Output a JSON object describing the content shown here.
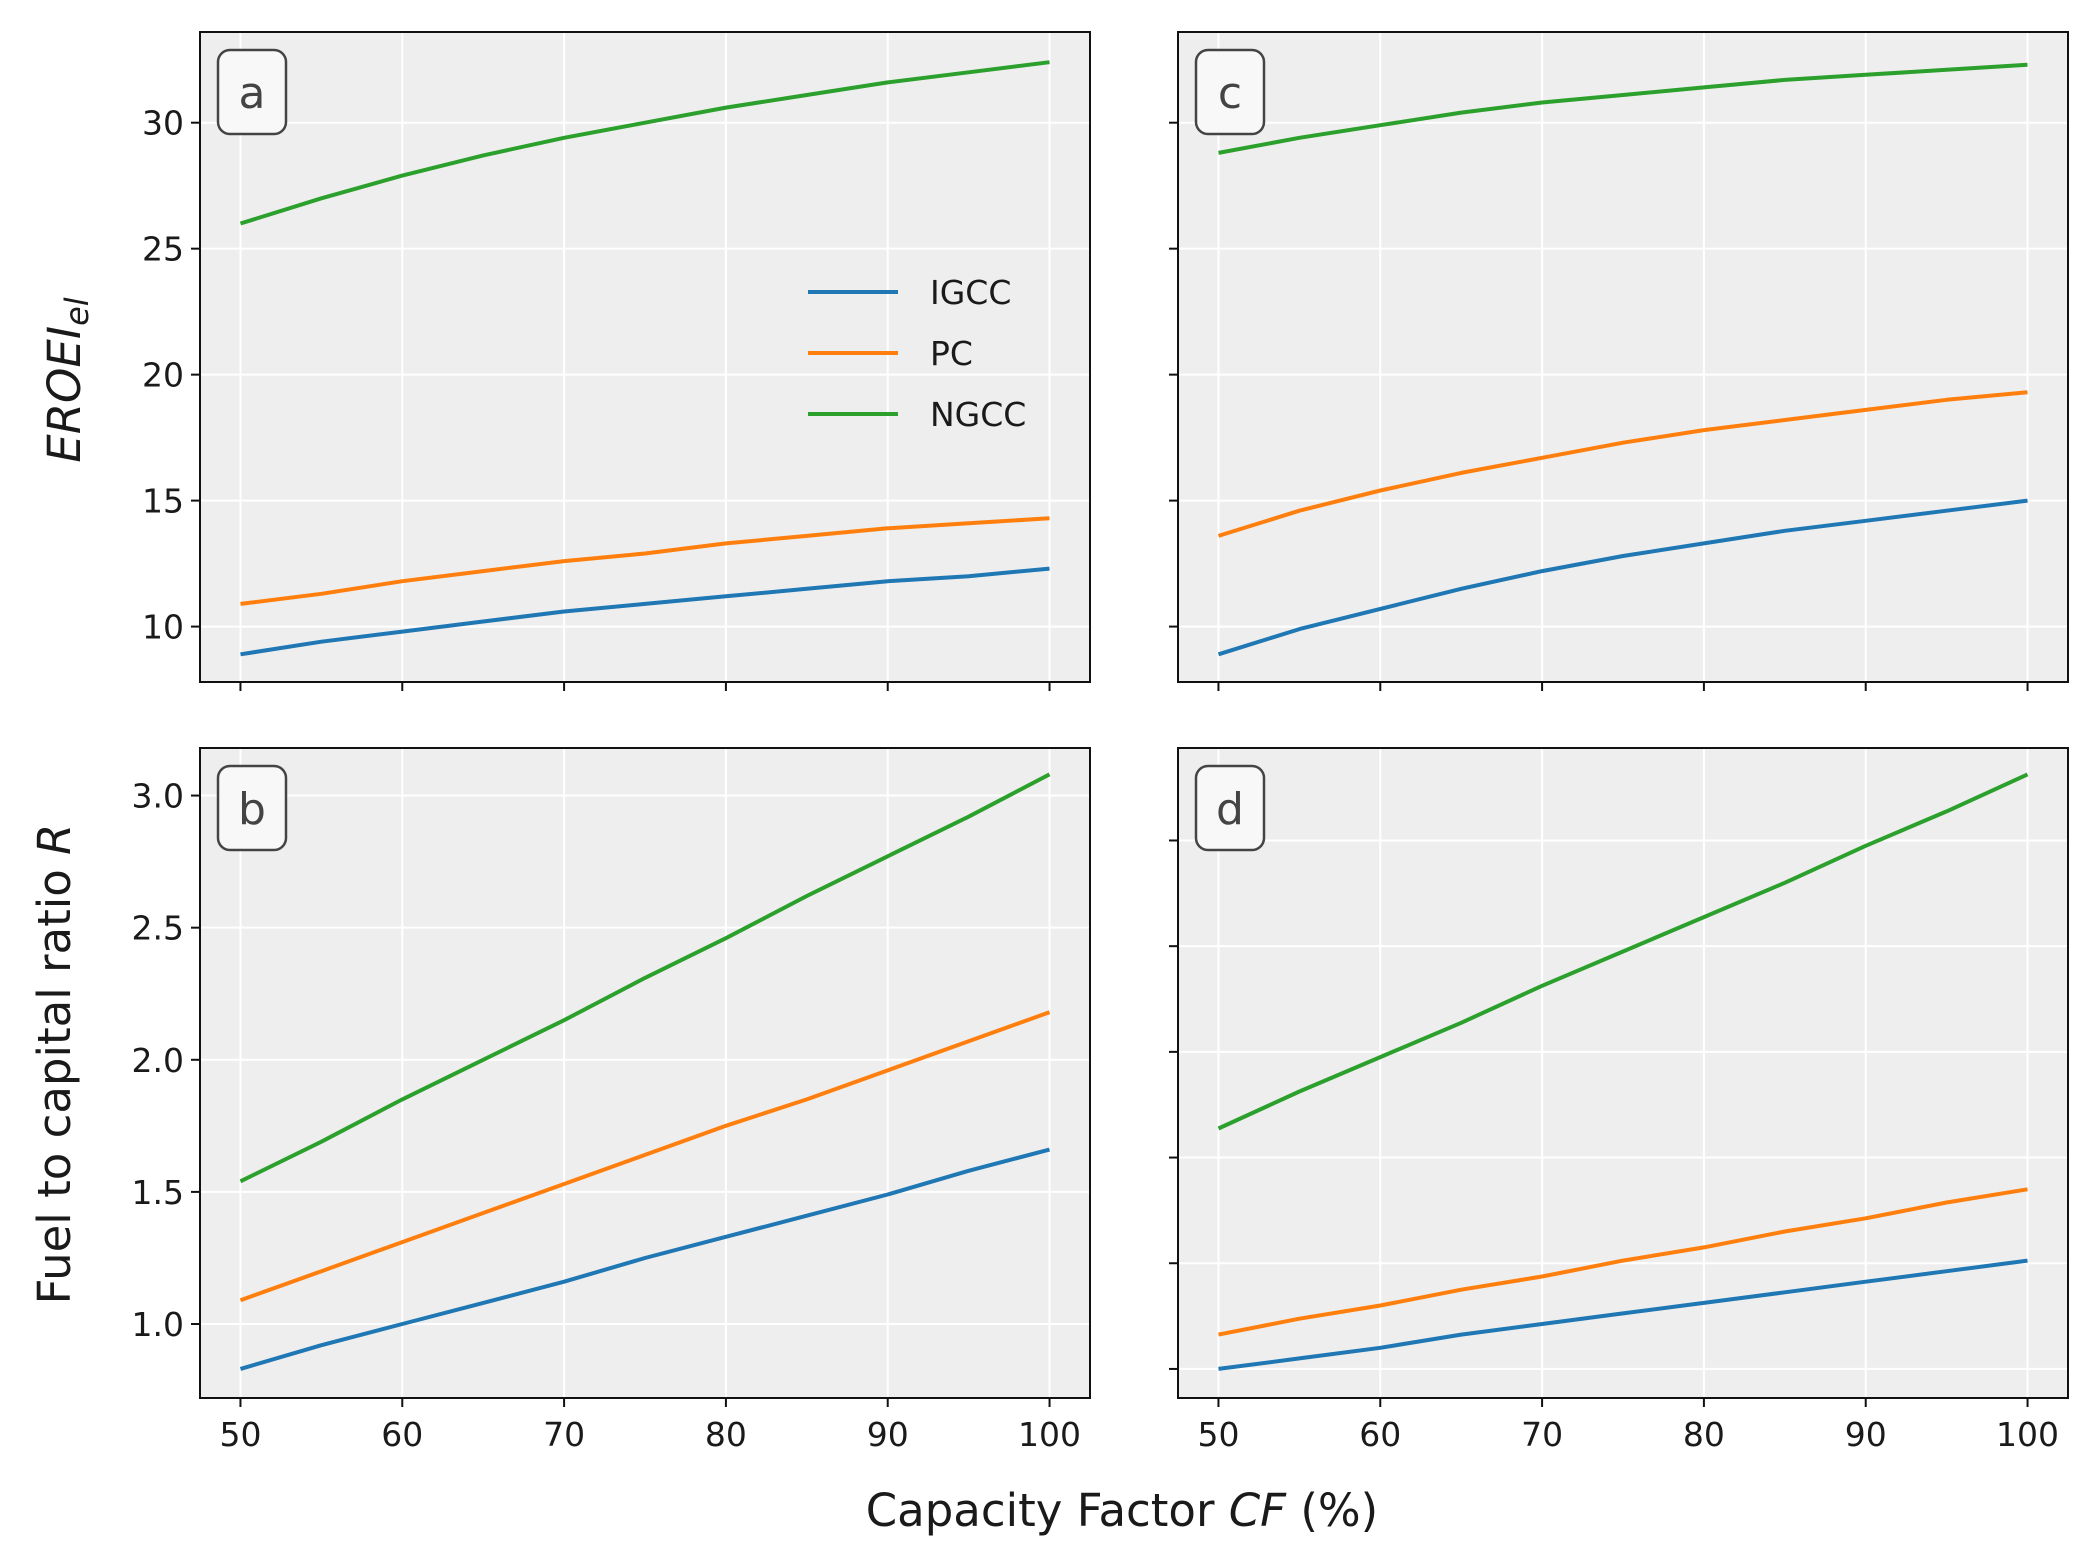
{
  "figure": {
    "xlabel": "Capacity Factor CF  (%)",
    "xlabel_parts": {
      "pre": "Capacity Factor ",
      "italic": "CF",
      "post": "  (%)"
    },
    "ylabel_top": "EROEI_el",
    "ylabel_top_parts": {
      "main": "EROEI",
      "sub": "el"
    },
    "ylabel_bottom": "Fuel to capital ratio R",
    "ylabel_bottom_parts": {
      "pre": "Fuel to capital ratio ",
      "italic": "R"
    },
    "legend": [
      {
        "name": "IGCC",
        "color": "#1f77b4"
      },
      {
        "name": "PC",
        "color": "#ff7f0e"
      },
      {
        "name": "NGCC",
        "color": "#2ca02c"
      }
    ],
    "legend_position": "center-right of panel a",
    "colors": {
      "IGCC": "#1f77b4",
      "PC": "#ff7f0e",
      "NGCC": "#2ca02c",
      "background": "#eeeeee",
      "grid": "#ffffff"
    }
  },
  "chart_data": [
    {
      "panel": "a",
      "type": "line",
      "x": [
        50,
        55,
        60,
        65,
        70,
        75,
        80,
        85,
        90,
        95,
        100
      ],
      "xlim": [
        47.5,
        102.5
      ],
      "ylim": [
        7.8,
        33.6
      ],
      "xticks": [
        "50",
        "60",
        "70",
        "80",
        "90",
        "100"
      ],
      "xtick_values": [
        50,
        60,
        70,
        80,
        90,
        100
      ],
      "show_xtick_labels": false,
      "yticks": [
        "10",
        "15",
        "20",
        "25",
        "30"
      ],
      "ytick_values": [
        10,
        15,
        20,
        25,
        30
      ],
      "show_ytick_labels": true,
      "grid": true,
      "series": [
        {
          "name": "IGCC",
          "values": [
            8.9,
            9.4,
            9.8,
            10.2,
            10.6,
            10.9,
            11.2,
            11.5,
            11.8,
            12.0,
            12.3
          ]
        },
        {
          "name": "PC",
          "values": [
            10.9,
            11.3,
            11.8,
            12.2,
            12.6,
            12.9,
            13.3,
            13.6,
            13.9,
            14.1,
            14.3
          ]
        },
        {
          "name": "NGCC",
          "values": [
            26.0,
            27.0,
            27.9,
            28.7,
            29.4,
            30.0,
            30.6,
            31.1,
            31.6,
            32.0,
            32.4
          ]
        }
      ]
    },
    {
      "panel": "b",
      "type": "line",
      "x": [
        50,
        55,
        60,
        65,
        70,
        75,
        80,
        85,
        90,
        95,
        100
      ],
      "xlim": [
        47.5,
        102.5
      ],
      "ylim": [
        0.72,
        3.18
      ],
      "xticks": [
        "50",
        "60",
        "70",
        "80",
        "90",
        "100"
      ],
      "xtick_values": [
        50,
        60,
        70,
        80,
        90,
        100
      ],
      "show_xtick_labels": true,
      "yticks": [
        "1.0",
        "1.5",
        "2.0",
        "2.5",
        "3.0"
      ],
      "ytick_values": [
        1.0,
        1.5,
        2.0,
        2.5,
        3.0
      ],
      "show_ytick_labels": true,
      "grid": true,
      "series": [
        {
          "name": "IGCC",
          "values": [
            0.83,
            0.92,
            1.0,
            1.08,
            1.16,
            1.25,
            1.33,
            1.41,
            1.49,
            1.58,
            1.66
          ]
        },
        {
          "name": "PC",
          "values": [
            1.09,
            1.2,
            1.31,
            1.42,
            1.53,
            1.64,
            1.75,
            1.85,
            1.96,
            2.07,
            2.18
          ]
        },
        {
          "name": "NGCC",
          "values": [
            1.54,
            1.69,
            1.85,
            2.0,
            2.15,
            2.31,
            2.46,
            2.62,
            2.77,
            2.92,
            3.08
          ]
        }
      ]
    },
    {
      "panel": "c",
      "type": "line",
      "x": [
        50,
        55,
        60,
        65,
        70,
        75,
        80,
        85,
        90,
        95,
        100
      ],
      "xlim": [
        47.5,
        102.5
      ],
      "ylim": [
        7.8,
        33.6
      ],
      "xticks": [
        "50",
        "60",
        "70",
        "80",
        "90",
        "100"
      ],
      "xtick_values": [
        50,
        60,
        70,
        80,
        90,
        100
      ],
      "show_xtick_labels": false,
      "ytick_values": [
        10,
        15,
        20,
        25,
        30
      ],
      "show_ytick_labels": false,
      "grid": true,
      "series": [
        {
          "name": "IGCC",
          "values": [
            8.9,
            9.9,
            10.7,
            11.5,
            12.2,
            12.8,
            13.3,
            13.8,
            14.2,
            14.6,
            15.0
          ]
        },
        {
          "name": "PC",
          "values": [
            13.6,
            14.6,
            15.4,
            16.1,
            16.7,
            17.3,
            17.8,
            18.2,
            18.6,
            19.0,
            19.3
          ]
        },
        {
          "name": "NGCC",
          "values": [
            28.8,
            29.4,
            29.9,
            30.4,
            30.8,
            31.1,
            31.4,
            31.7,
            31.9,
            32.1,
            32.3
          ]
        }
      ]
    },
    {
      "panel": "d",
      "type": "line",
      "x": [
        50,
        55,
        60,
        65,
        70,
        75,
        80,
        85,
        90,
        95,
        100
      ],
      "xlim": [
        47.5,
        102.5
      ],
      "ylim": [
        0.72,
        3.18
      ],
      "xticks": [
        "50",
        "60",
        "70",
        "80",
        "90",
        "100"
      ],
      "xtick_values": [
        50,
        60,
        70,
        80,
        90,
        100
      ],
      "show_xtick_labels": true,
      "ytick_values": [
        0.83,
        1.23,
        1.63,
        2.03,
        2.43,
        2.83
      ],
      "show_ytick_labels": false,
      "grid": true,
      "series": [
        {
          "name": "IGCC",
          "values": [
            0.83,
            0.87,
            0.91,
            0.96,
            1.0,
            1.04,
            1.08,
            1.12,
            1.16,
            1.2,
            1.24
          ]
        },
        {
          "name": "PC",
          "values": [
            0.96,
            1.02,
            1.07,
            1.13,
            1.18,
            1.24,
            1.29,
            1.35,
            1.4,
            1.46,
            1.51
          ]
        },
        {
          "name": "NGCC",
          "values": [
            1.74,
            1.88,
            2.01,
            2.14,
            2.28,
            2.41,
            2.54,
            2.67,
            2.81,
            2.94,
            3.08
          ]
        }
      ]
    }
  ]
}
